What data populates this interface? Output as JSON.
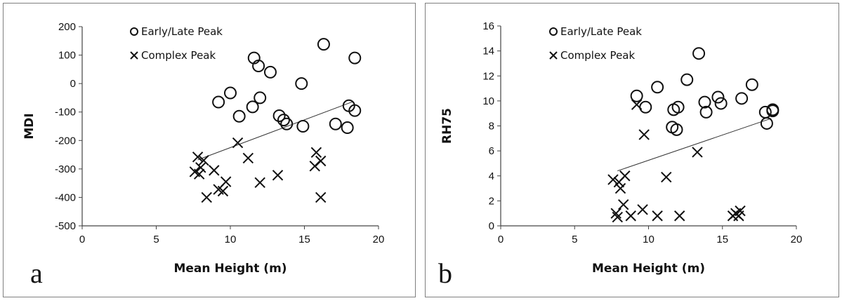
{
  "chart_data": [
    {
      "type": "scatter",
      "panel_label": "a",
      "xlabel": "Mean Height (m)",
      "ylabel": "MDI",
      "xlim": [
        0,
        20
      ],
      "ylim": [
        -500,
        200
      ],
      "xticks": [
        "0",
        "5",
        "10",
        "15",
        "20"
      ],
      "yticks": [
        "200",
        "100",
        "0",
        "-100",
        "-200",
        "-300",
        "-400",
        "-500"
      ],
      "legend_position": "top-left",
      "series": [
        {
          "name": "Early/Late Peak",
          "marker": "circle",
          "points": [
            [
              9.2,
              -65
            ],
            [
              10.0,
              -33
            ],
            [
              10.6,
              -115
            ],
            [
              11.5,
              -82
            ],
            [
              11.6,
              90
            ],
            [
              11.9,
              62
            ],
            [
              12.0,
              -50
            ],
            [
              12.7,
              40
            ],
            [
              13.3,
              -113
            ],
            [
              13.6,
              -128
            ],
            [
              13.8,
              -142
            ],
            [
              14.8,
              0
            ],
            [
              14.9,
              -150
            ],
            [
              16.3,
              138
            ],
            [
              17.1,
              -142
            ],
            [
              17.9,
              -155
            ],
            [
              18.0,
              -78
            ],
            [
              18.4,
              -95
            ],
            [
              18.4,
              90
            ]
          ]
        },
        {
          "name": "Complex Peak",
          "marker": "x",
          "points": [
            [
              7.6,
              -310
            ],
            [
              7.8,
              -258
            ],
            [
              7.9,
              -318
            ],
            [
              8.0,
              -295
            ],
            [
              8.2,
              -270
            ],
            [
              8.4,
              -400
            ],
            [
              8.9,
              -305
            ],
            [
              9.2,
              -372
            ],
            [
              9.5,
              -378
            ],
            [
              9.7,
              -345
            ],
            [
              10.5,
              -208
            ],
            [
              11.2,
              -262
            ],
            [
              12.0,
              -348
            ],
            [
              13.2,
              -322
            ],
            [
              15.7,
              -290
            ],
            [
              15.8,
              -242
            ],
            [
              16.1,
              -272
            ],
            [
              16.1,
              -400
            ]
          ]
        }
      ],
      "trendline": [
        [
          7.8,
          -268
        ],
        [
          18.3,
          -63
        ]
      ]
    },
    {
      "type": "scatter",
      "panel_label": "b",
      "xlabel": "Mean Height (m)",
      "ylabel": "RH75",
      "xlim": [
        0,
        20
      ],
      "ylim": [
        0,
        16
      ],
      "xticks": [
        "0",
        "5",
        "10",
        "15",
        "20"
      ],
      "yticks": [
        "16",
        "14",
        "12",
        "10",
        "8",
        "6",
        "4",
        "2",
        "0"
      ],
      "legend_position": "top-left",
      "series": [
        {
          "name": "Early/Late Peak",
          "marker": "circle",
          "points": [
            [
              9.2,
              10.4
            ],
            [
              9.8,
              9.5
            ],
            [
              10.6,
              11.1
            ],
            [
              11.6,
              7.9
            ],
            [
              11.7,
              9.3
            ],
            [
              11.9,
              7.7
            ],
            [
              12.0,
              9.5
            ],
            [
              12.6,
              11.7
            ],
            [
              13.4,
              13.8
            ],
            [
              13.8,
              9.9
            ],
            [
              13.9,
              9.1
            ],
            [
              14.7,
              10.3
            ],
            [
              14.9,
              9.8
            ],
            [
              16.3,
              10.2
            ],
            [
              17.0,
              11.3
            ],
            [
              17.9,
              9.1
            ],
            [
              18.0,
              8.2
            ],
            [
              18.4,
              9.2
            ],
            [
              18.4,
              9.3
            ]
          ]
        },
        {
          "name": "Complex Peak",
          "marker": "x",
          "points": [
            [
              7.6,
              3.7
            ],
            [
              7.8,
              1.0
            ],
            [
              7.9,
              0.7
            ],
            [
              8.0,
              3.5
            ],
            [
              8.1,
              3.0
            ],
            [
              8.3,
              1.7
            ],
            [
              8.4,
              4.0
            ],
            [
              8.8,
              0.8
            ],
            [
              9.2,
              9.7
            ],
            [
              9.6,
              1.3
            ],
            [
              9.7,
              7.3
            ],
            [
              10.6,
              0.8
            ],
            [
              11.2,
              3.9
            ],
            [
              12.1,
              0.8
            ],
            [
              13.3,
              5.9
            ],
            [
              15.7,
              0.8
            ],
            [
              15.9,
              1.0
            ],
            [
              16.1,
              0.8
            ],
            [
              16.2,
              1.2
            ]
          ]
        }
      ],
      "trendline": [
        [
          7.9,
          4.4
        ],
        [
          18.3,
          8.6
        ]
      ]
    }
  ]
}
